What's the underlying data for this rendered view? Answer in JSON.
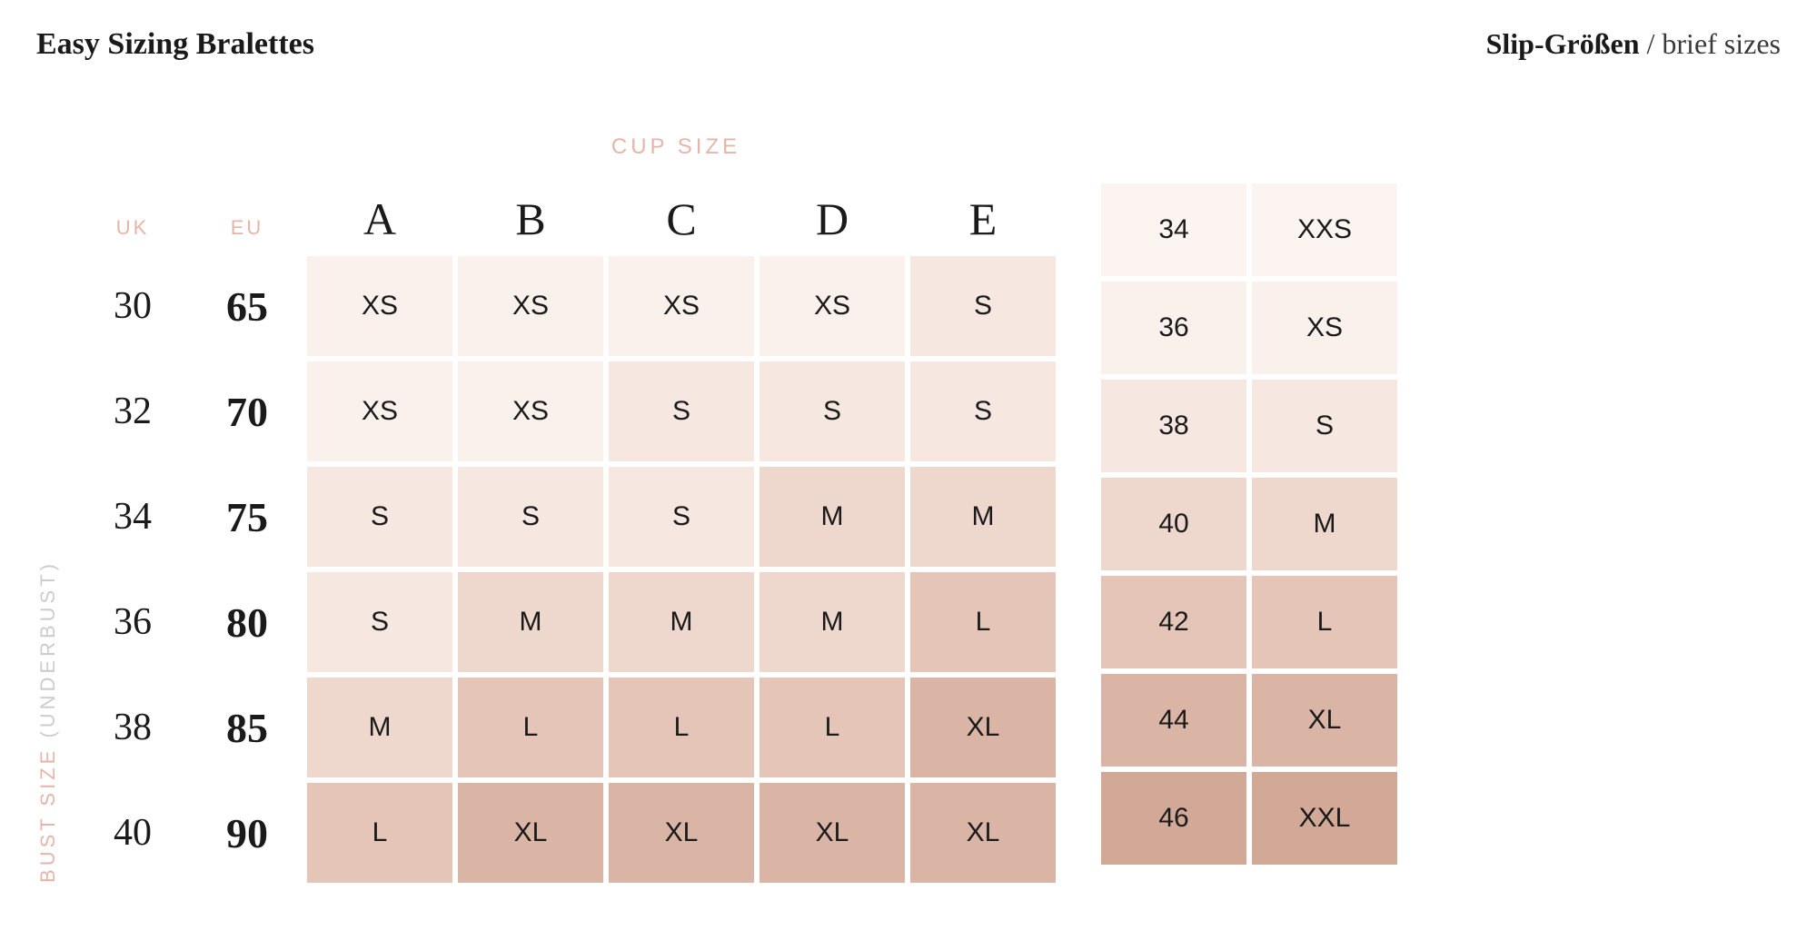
{
  "titles": {
    "left": "Easy Sizing Bralettes",
    "right_bold": "Slip-Größen",
    "right_light": " / brief sizes"
  },
  "labels": {
    "cup_size": "CUP SIZE",
    "bust_size": "BUST SIZE",
    "underbust": " (UNDERBUST)",
    "uk": "UK",
    "eu": "EU"
  },
  "cup_headers": [
    "A",
    "B",
    "C",
    "D",
    "E"
  ],
  "bust_rows": [
    {
      "uk": "30",
      "eu": "65",
      "sizes": [
        "XS",
        "XS",
        "XS",
        "XS",
        "S"
      ]
    },
    {
      "uk": "32",
      "eu": "70",
      "sizes": [
        "XS",
        "XS",
        "S",
        "S",
        "S"
      ]
    },
    {
      "uk": "34",
      "eu": "75",
      "sizes": [
        "S",
        "S",
        "S",
        "M",
        "M"
      ]
    },
    {
      "uk": "36",
      "eu": "80",
      "sizes": [
        "S",
        "M",
        "M",
        "M",
        "L"
      ]
    },
    {
      "uk": "38",
      "eu": "85",
      "sizes": [
        "M",
        "L",
        "L",
        "L",
        "XL"
      ]
    },
    {
      "uk": "40",
      "eu": "90",
      "sizes": [
        "L",
        "XL",
        "XL",
        "XL",
        "XL"
      ]
    }
  ],
  "brief_rows": [
    {
      "num": "34",
      "size": "XXS"
    },
    {
      "num": "36",
      "size": "XS"
    },
    {
      "num": "38",
      "size": "S"
    },
    {
      "num": "40",
      "size": "M"
    },
    {
      "num": "42",
      "size": "L"
    },
    {
      "num": "44",
      "size": "XL"
    },
    {
      "num": "46",
      "size": "XXL"
    }
  ],
  "colors": {
    "size_palette": {
      "XXS": "#fbf4f1",
      "XS": "#faf1ed",
      "S": "#f6e8e1",
      "M": "#eed7cd",
      "L": "#e4c5b8",
      "XL": "#dab4a5",
      "XXL": "#d2a897"
    }
  }
}
